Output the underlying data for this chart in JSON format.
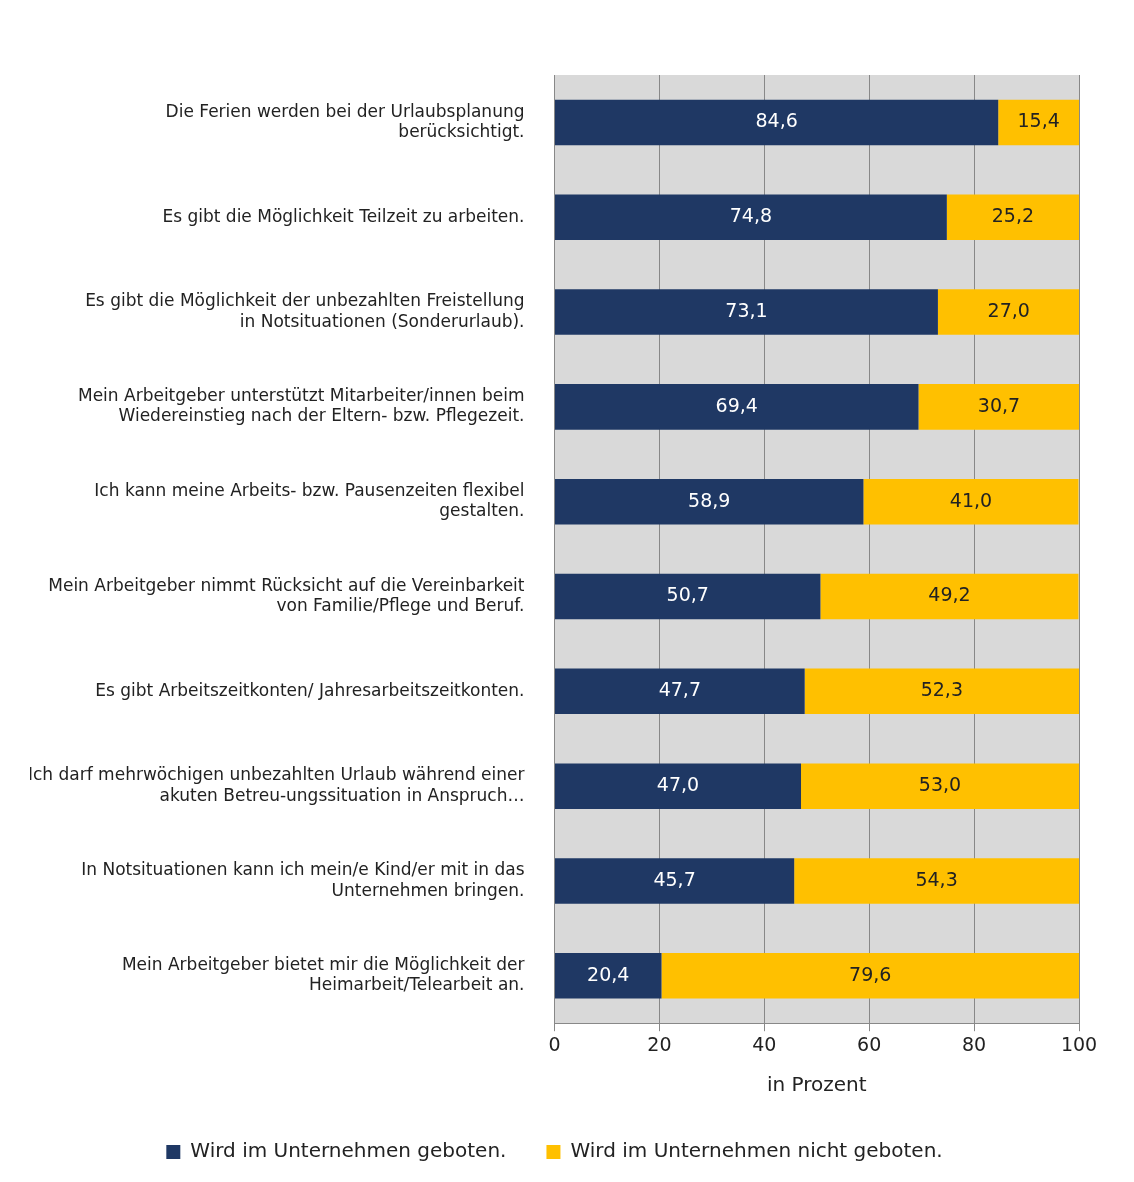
{
  "chart_data": {
    "type": "bar",
    "orientation": "horizontal",
    "stacked": true,
    "categories": [
      "Die Ferien werden bei der Urlaubsplanung berücksichtigt.",
      "Es gibt die Möglichkeit Teilzeit zu arbeiten.",
      "Es gibt die Möglichkeit der unbezahlten Freistellung in Notsituationen (Sonderurlaub).",
      "Mein Arbeitgeber unterstützt Mitarbeiter/innen beim Wiedereinstieg nach der Eltern- bzw. Pflegezeit.",
      "Ich kann meine Arbeits- bzw. Pausenzeiten flexibel gestalten.",
      "Mein Arbeitgeber nimmt Rücksicht auf die Vereinbarkeit von Familie/Pflege und Beruf.",
      "Es gibt Arbeitszeitkonten/ Jahresarbeitszeitkonten.",
      "Ich darf mehrwöchigen unbezahlten Urlaub während einer akuten Betreu-ungssituation in Anspruch…",
      "In Notsituationen kann ich mein/e Kind/er mit in das Unternehmen bringen.",
      "Mein Arbeitgeber bietet mir die Möglichkeit der Heimarbeit/Telearbeit an."
    ],
    "series": [
      {
        "name": "Wird im Unternehmen geboten.",
        "color": "#1f3864",
        "values": [
          84.6,
          74.8,
          73.1,
          69.4,
          58.9,
          50.7,
          47.7,
          47.0,
          45.7,
          20.4
        ],
        "value_labels": [
          "84,6",
          "74,8",
          "73,1",
          "69,4",
          "58,9",
          "50,7",
          "47,7",
          "47,0",
          "45,7",
          "20,4"
        ]
      },
      {
        "name": "Wird im Unternehmen nicht geboten.",
        "color": "#ffc000",
        "values": [
          15.4,
          25.2,
          27.0,
          30.7,
          41.0,
          49.2,
          52.3,
          53.0,
          54.3,
          79.6
        ],
        "value_labels": [
          "15,4",
          "25,2",
          "27,0",
          "30,7",
          "41,0",
          "49,2",
          "52,3",
          "53,0",
          "54,3",
          "79,6"
        ]
      }
    ],
    "xlim": [
      0,
      100
    ],
    "xticks": [
      0,
      20,
      40,
      60,
      80,
      100
    ],
    "xlabel": "in Prozent",
    "grid": "x",
    "legend": "bottom"
  }
}
